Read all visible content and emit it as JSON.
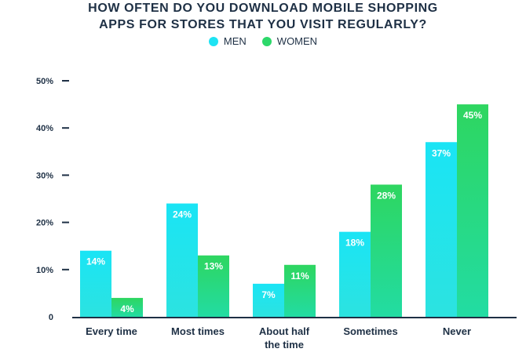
{
  "title_lines": [
    "HOW OFTEN DO YOU DOWNLOAD MOBILE SHOPPING",
    "APPS FOR STORES THAT YOU VISIT REGULARLY?"
  ],
  "legend": [
    {
      "label": "MEN",
      "color": "#1ee3f3"
    },
    {
      "label": "WOMEN",
      "color": "#2dd86a"
    }
  ],
  "chart_data": {
    "type": "bar",
    "title": "HOW OFTEN DO YOU DOWNLOAD MOBILE SHOPPING APPS FOR STORES THAT YOU VISIT REGULARLY?",
    "categories": [
      [
        "Every time"
      ],
      [
        "Most times"
      ],
      [
        "About half",
        "the time"
      ],
      [
        "Sometimes"
      ],
      [
        "Never"
      ]
    ],
    "series": [
      {
        "name": "MEN",
        "values": [
          14,
          24,
          7,
          18,
          37
        ],
        "labels": [
          "14%",
          "24%",
          "7%",
          "18%",
          "37%"
        ]
      },
      {
        "name": "WOMEN",
        "values": [
          4,
          13,
          11,
          28,
          45
        ],
        "labels": [
          "4%",
          "13%",
          "11%",
          "28%",
          "45%"
        ]
      }
    ],
    "ylim": [
      0,
      50
    ],
    "yticks": [
      0,
      10,
      20,
      30,
      40,
      50
    ],
    "yticklabels": [
      "0",
      "10%",
      "20%",
      "30%",
      "40%",
      "50%"
    ],
    "xlabel": "",
    "ylabel": "",
    "grid": false,
    "legend_position": "top-center"
  }
}
